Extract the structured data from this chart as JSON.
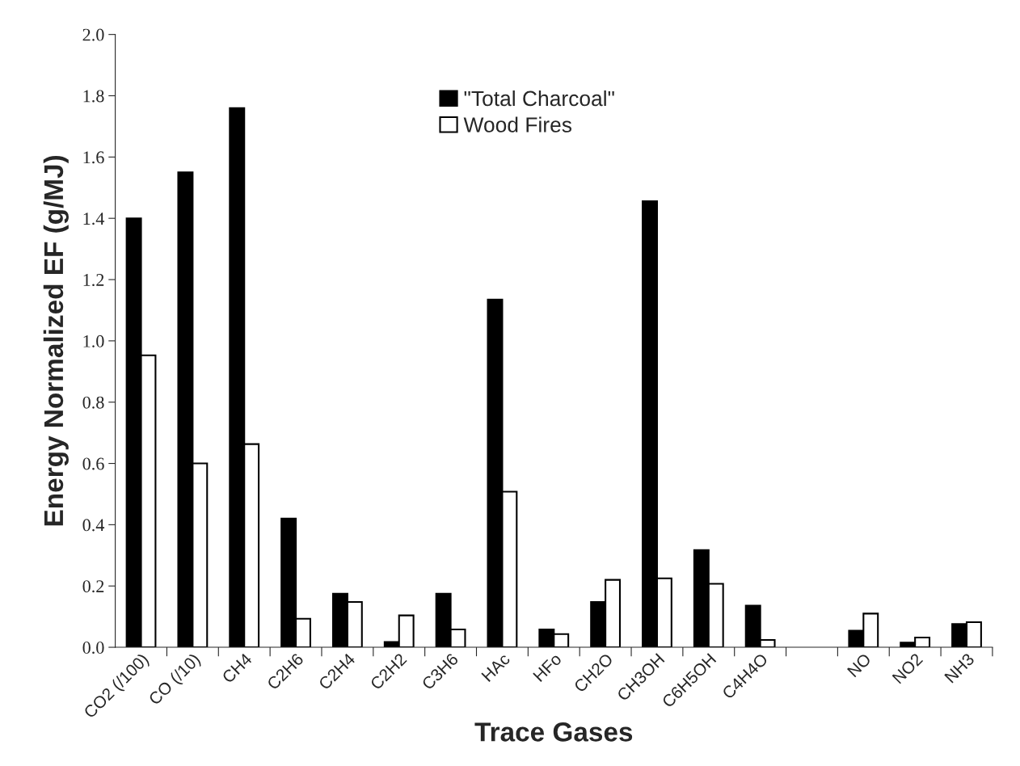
{
  "chart_data": {
    "type": "bar",
    "xlabel": "Trace Gases",
    "ylabel": "Energy Normalized EF (g/MJ)",
    "categories": [
      "CO2 (/100)",
      "CO (/10)",
      "CH4",
      "C2H6",
      "C2H4",
      "C2H2",
      "C3H6",
      "HAc",
      "HFo",
      "CH2O",
      "CH3OH",
      "C6H5OH",
      "C4H4O",
      null,
      "NO",
      "NO2",
      "NH3"
    ],
    "series": [
      {
        "name": "\"Total Charcoal\"",
        "color": "#000000",
        "values": [
          1.4,
          1.55,
          1.76,
          0.42,
          0.175,
          0.017,
          0.175,
          1.135,
          0.058,
          0.148,
          1.456,
          0.317,
          0.136,
          null,
          0.054,
          0.015,
          0.076
        ]
      },
      {
        "name": "Wood Fires",
        "color": "#ffffff",
        "values": [
          0.953,
          0.6,
          0.663,
          0.093,
          0.148,
          0.104,
          0.058,
          0.508,
          0.043,
          0.22,
          0.225,
          0.207,
          0.024,
          null,
          0.11,
          0.032,
          0.082
        ]
      }
    ],
    "ylim": [
      0,
      2.0
    ],
    "yticks": [
      {
        "value": 0,
        "label": "0.0"
      },
      0.2,
      0.4,
      0.6,
      0.8,
      {
        "value": 1.0,
        "label": "1.0"
      },
      1.2,
      1.4,
      1.6,
      1.8,
      {
        "value": 2.0,
        "label": "2.0"
      }
    ],
    "grid": false,
    "legend": "top"
  }
}
